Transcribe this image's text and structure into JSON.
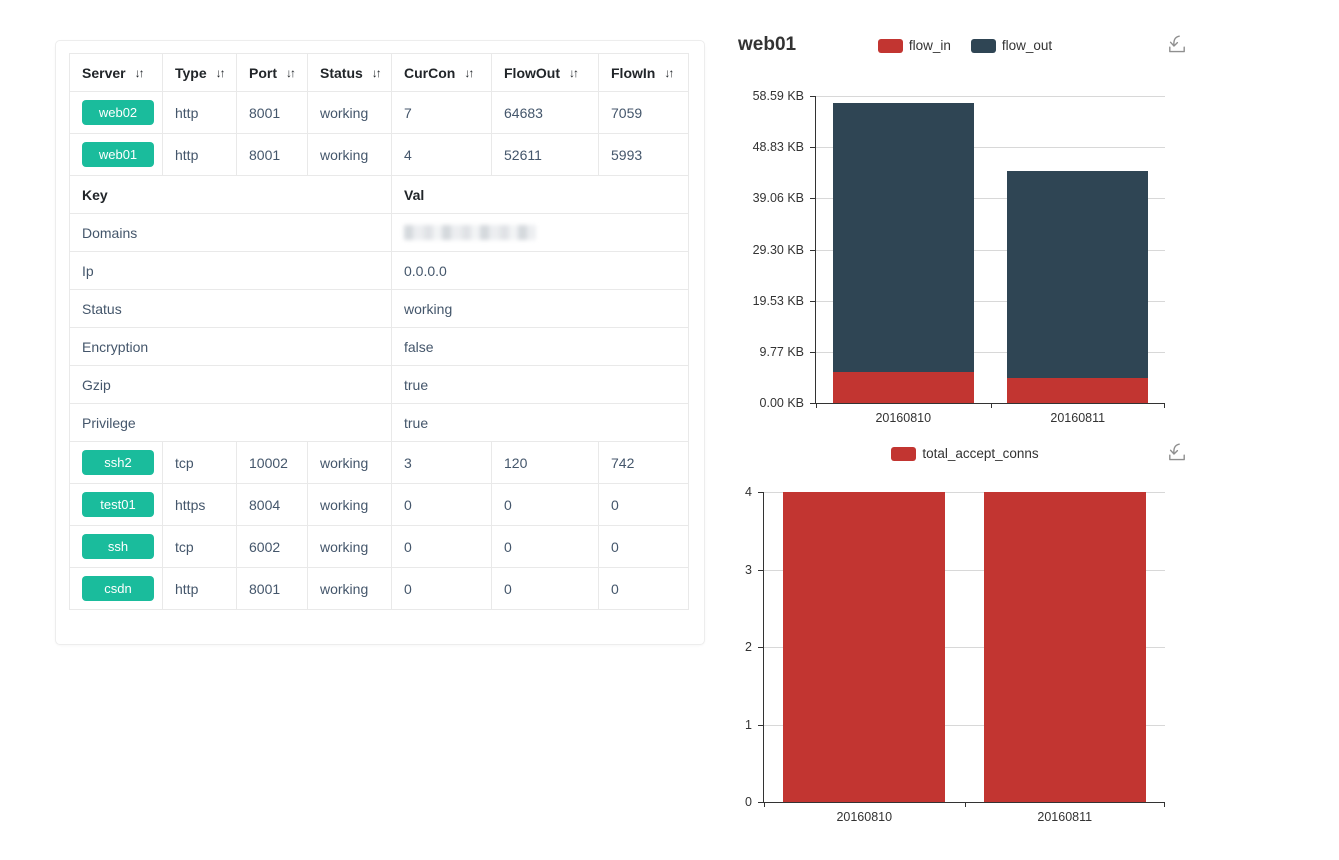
{
  "page": {
    "background": "#ffffff"
  },
  "icons": {
    "save_as_image": "download-tray-arrow",
    "sort": "↓↑"
  },
  "server_table": {
    "columns": [
      {
        "label": "Server",
        "sortable": true
      },
      {
        "label": "Type",
        "sortable": true
      },
      {
        "label": "Port",
        "sortable": true
      },
      {
        "label": "Status",
        "sortable": true
      },
      {
        "label": "CurCon",
        "sortable": true
      },
      {
        "label": "FlowOut",
        "sortable": true
      },
      {
        "label": "FlowIn",
        "sortable": true
      }
    ],
    "sort_icon": "↓↑",
    "rows_top": [
      {
        "server": "web02",
        "type": "http",
        "port": "8001",
        "status": "working",
        "curcon": "7",
        "flowout": "64683",
        "flowin": "7059"
      },
      {
        "server": "web01",
        "type": "http",
        "port": "8001",
        "status": "working",
        "curcon": "4",
        "flowout": "52611",
        "flowin": "5993"
      }
    ],
    "detail": {
      "key_header": "Key",
      "val_header": "Val",
      "rows": [
        {
          "key": "Domains",
          "val": "",
          "redacted": true
        },
        {
          "key": "Ip",
          "val": "0.0.0.0"
        },
        {
          "key": "Status",
          "val": "working"
        },
        {
          "key": "Encryption",
          "val": "false"
        },
        {
          "key": "Gzip",
          "val": "true"
        },
        {
          "key": "Privilege",
          "val": "true"
        }
      ]
    },
    "rows_bottom": [
      {
        "server": "ssh2",
        "type": "tcp",
        "port": "10002",
        "status": "working",
        "curcon": "3",
        "flowout": "120",
        "flowin": "742"
      },
      {
        "server": "test01",
        "type": "https",
        "port": "8004",
        "status": "working",
        "curcon": "0",
        "flowout": "0",
        "flowin": "0"
      },
      {
        "server": "ssh",
        "type": "tcp",
        "port": "6002",
        "status": "working",
        "curcon": "0",
        "flowout": "0",
        "flowin": "0"
      },
      {
        "server": "csdn",
        "type": "http",
        "port": "8001",
        "status": "working",
        "curcon": "0",
        "flowout": "0",
        "flowin": "0"
      }
    ],
    "colors": {
      "badge": "#1abc9c",
      "badge_text": "#ffffff",
      "border": "#e9e9e9",
      "header_text": "#212529",
      "body_text": "#44566b"
    }
  },
  "chart_data": [
    {
      "type": "bar",
      "stacked": true,
      "title": "web01",
      "categories": [
        "20160810",
        "20160811"
      ],
      "series": [
        {
          "name": "flow_in",
          "color": "#c23531",
          "values": [
            5.85,
            4.7
          ]
        },
        {
          "name": "flow_out",
          "color": "#2f4554",
          "values": [
            51.38,
            39.6
          ]
        }
      ],
      "y_axis": {
        "unit": "KB",
        "min": 0,
        "max": 58.59,
        "ticks": [
          "58.59 KB",
          "48.83 KB",
          "39.06 KB",
          "29.30 KB",
          "19.53 KB",
          "9.77 KB",
          "0.00 KB"
        ]
      },
      "legend_position": "top-center",
      "grid": true
    },
    {
      "type": "bar",
      "stacked": false,
      "title": "",
      "categories": [
        "20160810",
        "20160811"
      ],
      "series": [
        {
          "name": "total_accept_conns",
          "color": "#c23531",
          "values": [
            4,
            4
          ]
        }
      ],
      "y_axis": {
        "unit": "",
        "min": 0,
        "max": 4,
        "ticks": [
          "4",
          "3",
          "2",
          "1",
          "0"
        ]
      },
      "legend_position": "top-center",
      "grid": true
    }
  ]
}
